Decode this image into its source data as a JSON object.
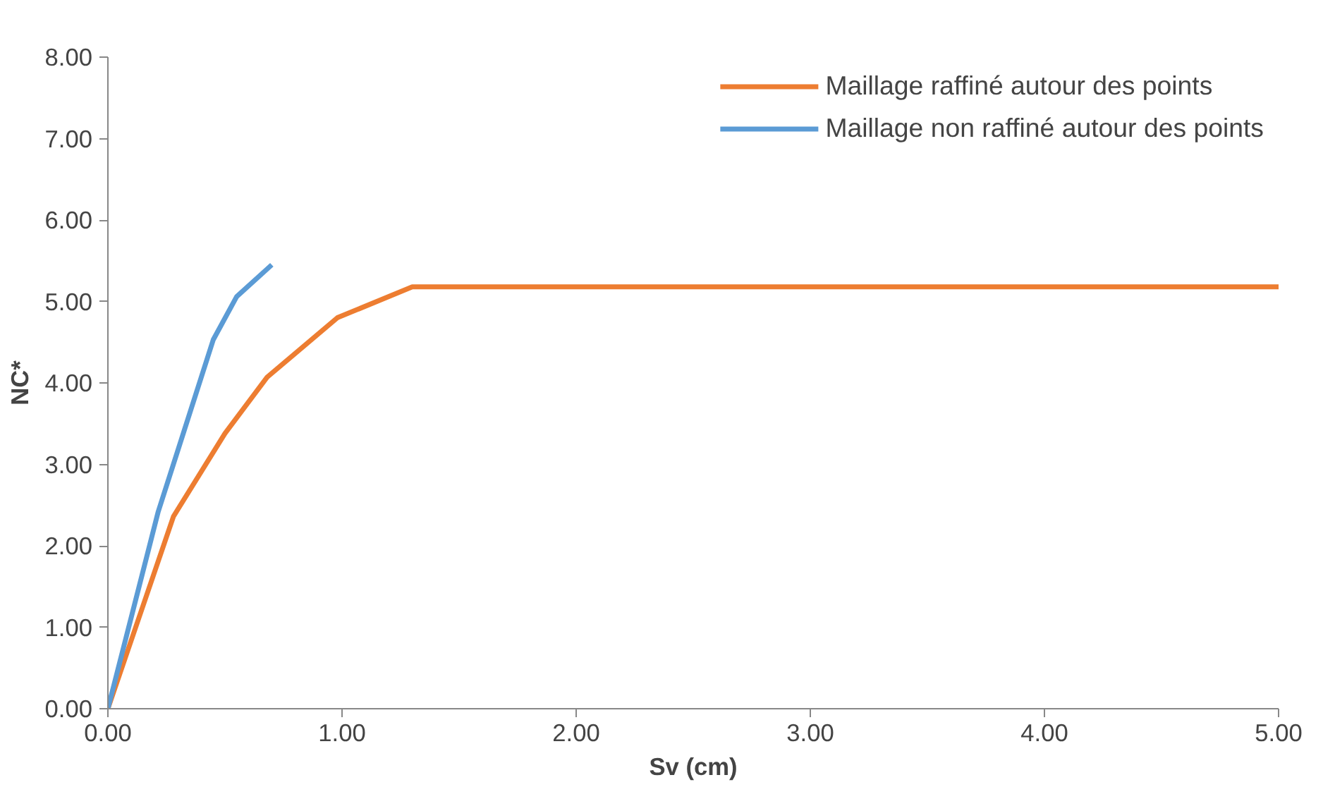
{
  "chart_data": {
    "type": "line",
    "xlabel": "Sv (cm)",
    "ylabel": "NC*",
    "xlim": [
      0,
      5
    ],
    "ylim": [
      0,
      8
    ],
    "xticks": [
      {
        "value": 0,
        "label": "0.00"
      },
      {
        "value": 1,
        "label": "1.00"
      },
      {
        "value": 2,
        "label": "2.00"
      },
      {
        "value": 3,
        "label": "3.00"
      },
      {
        "value": 4,
        "label": "4.00"
      },
      {
        "value": 5,
        "label": "5.00"
      }
    ],
    "yticks": [
      {
        "value": 0,
        "label": "0.00"
      },
      {
        "value": 1,
        "label": "1.00"
      },
      {
        "value": 2,
        "label": "2.00"
      },
      {
        "value": 3,
        "label": "3.00"
      },
      {
        "value": 4,
        "label": "4.00"
      },
      {
        "value": 5,
        "label": "5.00"
      },
      {
        "value": 6,
        "label": "6.00"
      },
      {
        "value": 7,
        "label": "7.00"
      },
      {
        "value": 8,
        "label": "8.00"
      }
    ],
    "grid": false,
    "legend": "top right",
    "marker": "none",
    "line_style": "solid",
    "series": [
      {
        "name": "Maillage raffiné autour des points",
        "color": "#ed7d31",
        "x": [
          0,
          0.28,
          0.5,
          0.68,
          0.98,
          1.3,
          5.0
        ],
        "values": [
          0,
          2.36,
          3.38,
          4.07,
          4.8,
          5.18,
          5.18
        ]
      },
      {
        "name": "Maillage non raffiné autour des points",
        "color": "#5b9bd5",
        "x": [
          0,
          0.215,
          0.45,
          0.55,
          0.7
        ],
        "values": [
          0,
          2.42,
          4.53,
          5.06,
          5.45
        ]
      }
    ]
  }
}
